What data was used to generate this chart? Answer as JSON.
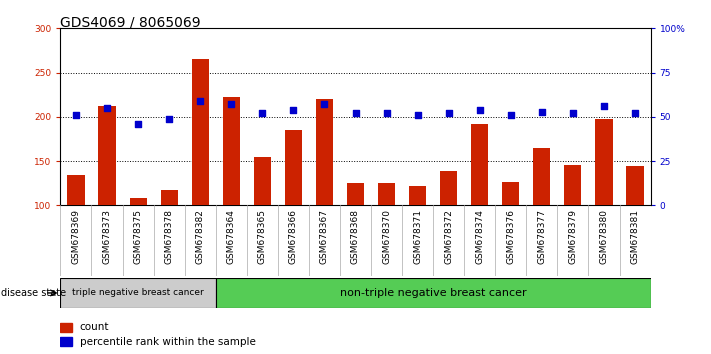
{
  "title": "GDS4069 / 8065069",
  "samples": [
    "GSM678369",
    "GSM678373",
    "GSM678375",
    "GSM678378",
    "GSM678382",
    "GSM678364",
    "GSM678365",
    "GSM678366",
    "GSM678367",
    "GSM678368",
    "GSM678370",
    "GSM678371",
    "GSM678372",
    "GSM678374",
    "GSM678376",
    "GSM678377",
    "GSM678379",
    "GSM678380",
    "GSM678381"
  ],
  "counts": [
    134,
    212,
    108,
    117,
    265,
    222,
    155,
    185,
    220,
    125,
    125,
    122,
    139,
    192,
    126,
    165,
    145,
    198,
    144
  ],
  "percentiles": [
    51,
    55,
    46,
    49,
    59,
    57,
    52,
    54,
    57,
    52,
    52,
    51,
    52,
    54,
    51,
    53,
    52,
    56,
    52
  ],
  "group1_label": "triple negative breast cancer",
  "group2_label": "non-triple negative breast cancer",
  "group1_count": 5,
  "group2_count": 14,
  "bar_color": "#cc2200",
  "dot_color": "#0000cc",
  "ylim_left": [
    100,
    300
  ],
  "ylim_right": [
    0,
    100
  ],
  "yticks_left": [
    100,
    150,
    200,
    250,
    300
  ],
  "yticks_right": [
    0,
    25,
    50,
    75,
    100
  ],
  "disease_state_label": "disease state",
  "legend_bar": "count",
  "legend_dot": "percentile rank within the sample",
  "background_color": "#ffffff",
  "plot_bg_color": "#ffffff",
  "group1_bg": "#cccccc",
  "group2_bg": "#55cc55",
  "title_fontsize": 10,
  "tick_fontsize": 6.5,
  "label_fontsize": 7.5
}
